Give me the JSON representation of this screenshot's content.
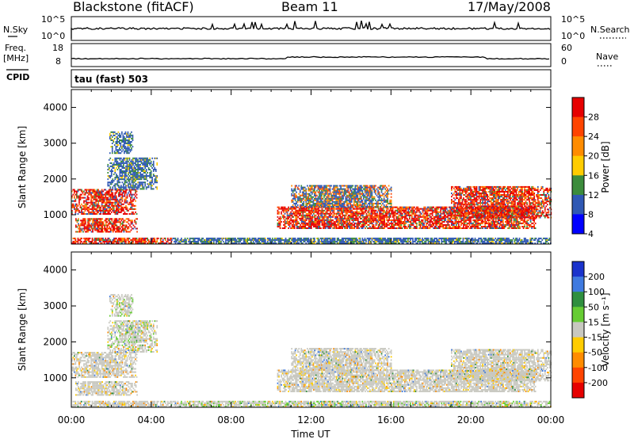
{
  "header": {
    "title": "Blackstone (fitACF)",
    "beam": "Beam 11",
    "date": "17/May/2008"
  },
  "top_panels": {
    "nsky_label": "N.Sky",
    "nsky_ticks": [
      "10^5",
      "10^0"
    ],
    "nsearch_label": "N.Search",
    "nsearch_ticks": [
      "10^5",
      "10^0"
    ],
    "freq_label_1": "Freq.",
    "freq_label_2": "[MHz]",
    "freq_ticks": [
      "18",
      "8"
    ],
    "nave_label": "Nave",
    "nave_ticks": [
      "60",
      "0"
    ],
    "cpid_label": "CPID",
    "cpid_value": "tau (fast) 503"
  },
  "chart_data": [
    {
      "type": "heatmap",
      "name": "power",
      "ylabel": "Slant Range [km]",
      "yticks": [
        "4000",
        "3000",
        "2000",
        "1000"
      ],
      "ylim": [
        180,
        4500
      ],
      "xticks": [
        "00:00",
        "04:00",
        "08:00",
        "12:00",
        "16:00",
        "20:00",
        "00:00"
      ],
      "xlim_hours": [
        0,
        24
      ],
      "colorbar": {
        "label": "Power [dB]",
        "ticks": [
          "28",
          "24",
          "20",
          "16",
          "12",
          "8",
          "4"
        ],
        "colors": [
          "#e60000",
          "#ff4400",
          "#ff8c00",
          "#ffcc00",
          "#3c8c3c",
          "#2f58b4",
          "#0000ff"
        ]
      },
      "echo_regions": [
        {
          "t": [
            0.0,
            3.3
          ],
          "range": [
            1000,
            1700
          ],
          "level": "high"
        },
        {
          "t": [
            0.2,
            3.3
          ],
          "range": [
            500,
            900
          ],
          "level": "high"
        },
        {
          "t": [
            1.8,
            4.3
          ],
          "range": [
            1700,
            2600
          ],
          "level": "low"
        },
        {
          "t": [
            1.9,
            3.1
          ],
          "range": [
            2700,
            3300
          ],
          "level": "low"
        },
        {
          "t": [
            0.0,
            5.0
          ],
          "range": [
            180,
            320
          ],
          "level": "high"
        },
        {
          "t": [
            5.0,
            24.0
          ],
          "range": [
            180,
            320
          ],
          "level": "low"
        },
        {
          "t": [
            10.3,
            23.2
          ],
          "range": [
            600,
            1200
          ],
          "level": "high"
        },
        {
          "t": [
            11.0,
            16.0
          ],
          "range": [
            1200,
            1800
          ],
          "level": "mid"
        },
        {
          "t": [
            19.0,
            24.0
          ],
          "range": [
            900,
            1800
          ],
          "level": "high"
        }
      ]
    },
    {
      "type": "heatmap",
      "name": "velocity",
      "ylabel": "Slant Range [km]",
      "yticks": [
        "4000",
        "3000",
        "2000",
        "1000"
      ],
      "ylim": [
        180,
        4500
      ],
      "xticks": [
        "00:00",
        "04:00",
        "08:00",
        "12:00",
        "16:00",
        "20:00",
        "00:00"
      ],
      "xlim_hours": [
        0,
        24
      ],
      "xlabel": "Time UT",
      "colorbar": {
        "label": "Velocity [m s⁻¹]",
        "ticks": [
          "200",
          "100",
          "50",
          "15",
          "-15",
          "-50",
          "-100",
          "-200"
        ],
        "colors": [
          "#1a33cc",
          "#3f7ae0",
          "#2f8f3f",
          "#66cc33",
          "#c8c8c0",
          "#ffcc00",
          "#ff8c00",
          "#ff4400",
          "#e60000"
        ]
      }
    }
  ]
}
